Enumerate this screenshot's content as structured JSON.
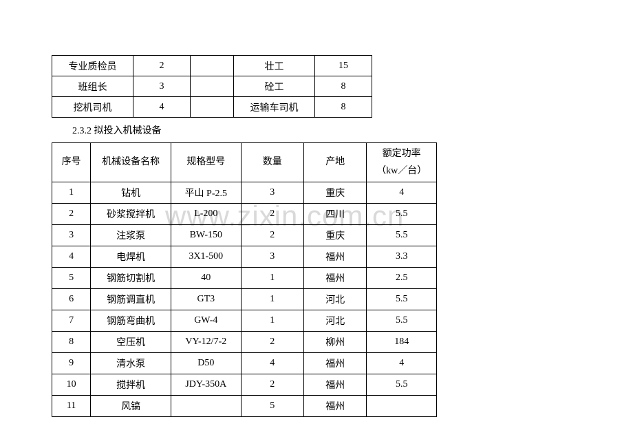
{
  "watermark": "www.zixin.com.cn",
  "table1": {
    "rows": [
      [
        "专业质检员",
        "2",
        "",
        "壮工",
        "15"
      ],
      [
        "班组长",
        "3",
        "",
        "砼工",
        "8"
      ],
      [
        "挖机司机",
        "4",
        "",
        "运输车司机",
        "8"
      ]
    ]
  },
  "sectionTitle": "2.3.2 拟投入机械设备",
  "table2": {
    "headers": [
      "序号",
      "机械设备名称",
      "规格型号",
      "数量",
      "产地",
      "额定功率\n（kw／台）"
    ],
    "rows": [
      [
        "1",
        "钻机",
        "平山 P-2.5",
        "3",
        "重庆",
        "4"
      ],
      [
        "2",
        "砂浆搅拌机",
        "L-200",
        "2",
        "四川",
        "5.5"
      ],
      [
        "3",
        "注浆泵",
        "BW-150",
        "2",
        "重庆",
        "5.5"
      ],
      [
        "4",
        "电焊机",
        "3X1-500",
        "3",
        "福州",
        "3.3"
      ],
      [
        "5",
        "钢筋切割机",
        "40",
        "1",
        "福州",
        "2.5"
      ],
      [
        "6",
        "钢筋调直机",
        "GT3",
        "1",
        "河北",
        "5.5"
      ],
      [
        "7",
        "钢筋弯曲机",
        "GW-4",
        "1",
        "河北",
        "5.5"
      ],
      [
        "8",
        "空压机",
        "VY-12/7-2",
        "2",
        "柳州",
        "184"
      ],
      [
        "9",
        "清水泵",
        "D50",
        "4",
        "福州",
        "4"
      ],
      [
        "10",
        "搅拌机",
        "JDY-350A",
        "2",
        "福州",
        "5.5"
      ],
      [
        "11",
        "风镐",
        "",
        "5",
        "福州",
        ""
      ]
    ]
  }
}
